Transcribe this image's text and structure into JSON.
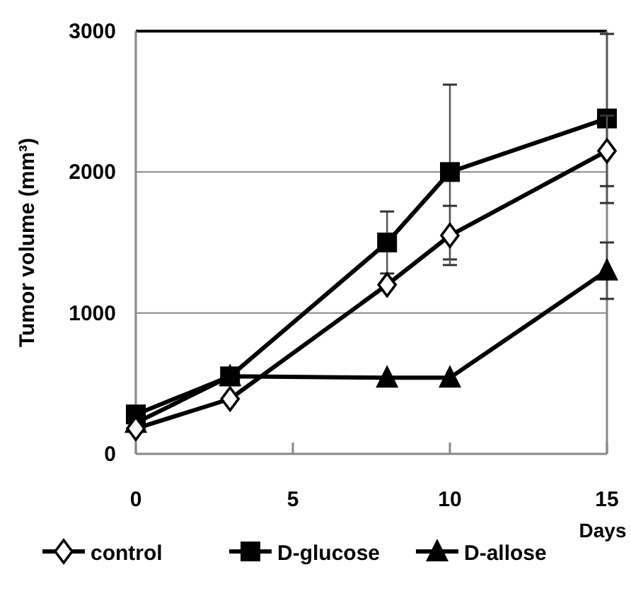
{
  "chart_data": {
    "type": "line",
    "xlabel": "Days",
    "ylabel": "Tumor volume (mm³)",
    "xlim": [
      0,
      15
    ],
    "xticks": [
      0,
      5,
      10,
      15
    ],
    "ylim": [
      0,
      3000
    ],
    "yticks": [
      0,
      1000,
      2000,
      3000
    ],
    "grid": "y",
    "legend": "bottom",
    "line_style": "solid",
    "series": [
      {
        "name": "control",
        "color": "#000000",
        "marker": "diamond",
        "x": [
          0,
          3,
          8,
          10,
          15
        ],
        "values": [
          180,
          390,
          1200,
          1550,
          2150
        ],
        "errors": [
          null,
          null,
          null,
          210,
          250
        ]
      },
      {
        "name": "D-glucose",
        "color": "#000000",
        "marker": "square",
        "x": [
          0,
          3,
          8,
          10,
          15
        ],
        "values": [
          280,
          550,
          1500,
          2000,
          2380
        ],
        "errors": [
          null,
          null,
          220,
          620,
          600
        ]
      },
      {
        "name": "D-allose",
        "color": "#000000",
        "marker": "triangle",
        "x": [
          0,
          3,
          8,
          10,
          15
        ],
        "values": [
          220,
          550,
          540,
          540,
          1300
        ],
        "errors": [
          null,
          null,
          null,
          null,
          200
        ]
      }
    ]
  }
}
